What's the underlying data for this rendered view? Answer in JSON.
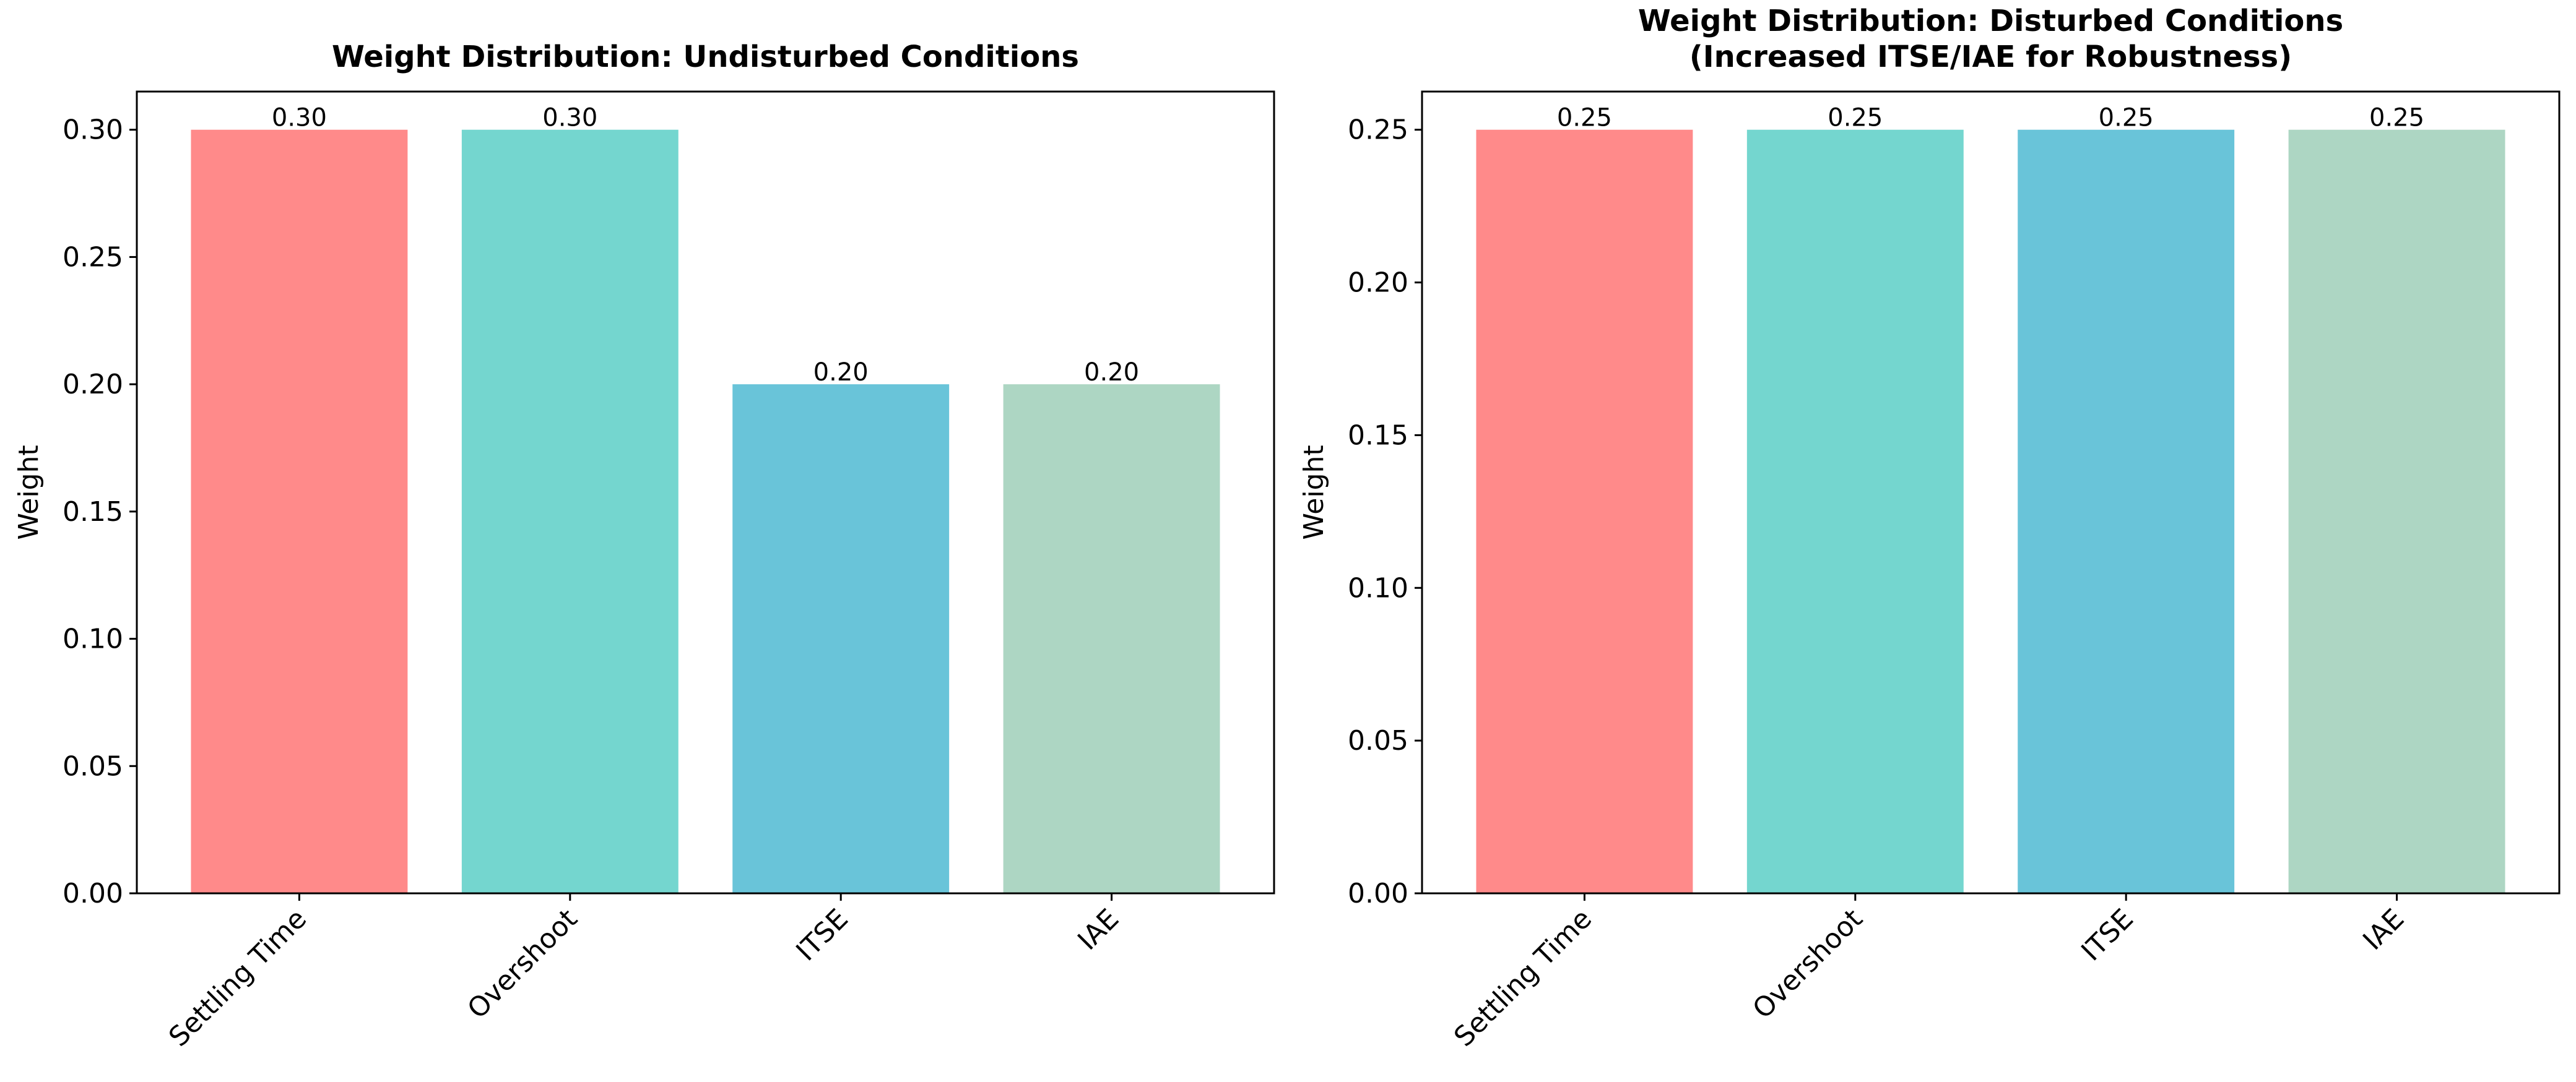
{
  "chart_data": [
    {
      "type": "bar",
      "title": "Weight Distribution: Undisturbed Conditions",
      "xlabel": "",
      "ylabel": "Weight",
      "categories": [
        "Settling Time",
        "Overshoot",
        "ITSE",
        "IAE"
      ],
      "values": [
        0.3,
        0.3,
        0.2,
        0.2
      ],
      "value_labels": [
        "0.30",
        "0.30",
        "0.20",
        "0.20"
      ],
      "colors": [
        "#FF8A8A",
        "#74D6CF",
        "#69C4D9",
        "#ADD6C3"
      ],
      "ylim": [
        0,
        0.315
      ],
      "yticks": [
        0.0,
        0.05,
        0.1,
        0.15,
        0.2,
        0.25,
        0.3
      ],
      "ytick_labels": [
        "0.00",
        "0.05",
        "0.10",
        "0.15",
        "0.20",
        "0.25",
        "0.30"
      ],
      "xtick_rotation": 45,
      "grid": false,
      "legend": false
    },
    {
      "type": "bar",
      "title": "Weight Distribution: Disturbed Conditions\n(Increased ITSE/IAE for Robustness)",
      "xlabel": "",
      "ylabel": "Weight",
      "categories": [
        "Settling Time",
        "Overshoot",
        "ITSE",
        "IAE"
      ],
      "values": [
        0.25,
        0.25,
        0.25,
        0.25
      ],
      "value_labels": [
        "0.25",
        "0.25",
        "0.25",
        "0.25"
      ],
      "colors": [
        "#FF8A8A",
        "#74D6CF",
        "#69C4D9",
        "#ADD6C3"
      ],
      "ylim": [
        0,
        0.2625
      ],
      "yticks": [
        0.0,
        0.05,
        0.1,
        0.15,
        0.2,
        0.25
      ],
      "ytick_labels": [
        "0.00",
        "0.05",
        "0.10",
        "0.15",
        "0.20",
        "0.25"
      ],
      "xtick_rotation": 45,
      "grid": false,
      "legend": false
    }
  ]
}
